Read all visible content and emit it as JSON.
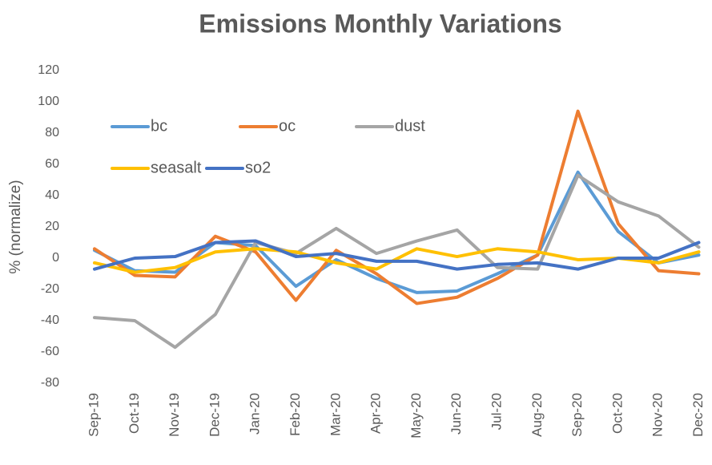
{
  "chart_data": {
    "type": "line",
    "title": "Emissions Monthly Variations",
    "y_label": "% (normalize)",
    "categories": [
      "Sep-19",
      "Oct-19",
      "Nov-19",
      "Dec-19",
      "Jan-20",
      "Feb-20",
      "Mar-20",
      "Apr-20",
      "May-20",
      "Jun-20",
      "Jul-20",
      "Aug-20",
      "Sep-20",
      "Oct-20",
      "Nov-20",
      "Dec-20"
    ],
    "series": [
      {
        "name": "bc",
        "color": "#5b9bd5",
        "values": [
          5,
          -8,
          -9,
          10,
          8,
          -18,
          -1,
          -13,
          -22,
          -21,
          -10,
          2,
          55,
          17,
          -3,
          2
        ]
      },
      {
        "name": "oc",
        "color": "#ed7d31",
        "values": [
          6,
          -11,
          -12,
          14,
          4,
          -27,
          5,
          -10,
          -29,
          -25,
          -13,
          2,
          94,
          22,
          -8,
          -10
        ]
      },
      {
        "name": "dust",
        "color": "#a5a5a5",
        "values": [
          -38,
          -40,
          -57,
          -36,
          10,
          3,
          19,
          3,
          11,
          18,
          -6,
          -7,
          53,
          36,
          27,
          7
        ]
      },
      {
        "name": "seasalt",
        "color": "#ffc000",
        "values": [
          -3,
          -9,
          -6,
          4,
          6,
          4,
          -3,
          -7,
          6,
          1,
          6,
          4,
          -1,
          0,
          -3,
          4
        ]
      },
      {
        "name": "so2",
        "color": "#4472c4",
        "values": [
          -7,
          0,
          1,
          10,
          11,
          1,
          3,
          -2,
          -2,
          -7,
          -4,
          -3,
          -7,
          0,
          0,
          10
        ]
      }
    ],
    "ylim": [
      -80,
      120
    ],
    "yticks": [
      -80,
      -60,
      -40,
      -20,
      0,
      20,
      40,
      60,
      80,
      100,
      120
    ],
    "grid": false
  }
}
